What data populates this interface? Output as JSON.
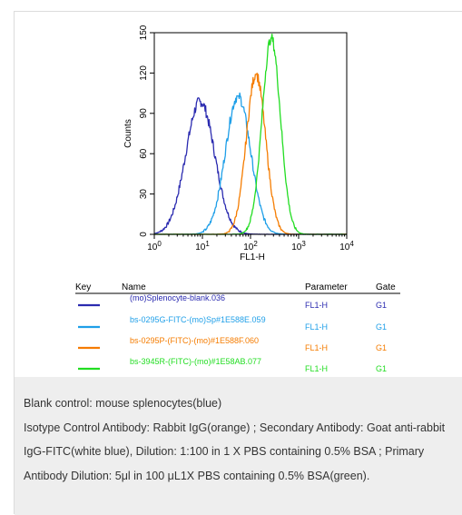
{
  "chart_data": {
    "type": "line",
    "xlabel": "FL1-H",
    "ylabel": "Counts",
    "x_scale": "log",
    "xlim": [
      1,
      10000
    ],
    "ylim": [
      0,
      150
    ],
    "x_ticks": [
      {
        "value": 1,
        "base": "10",
        "exp": "0"
      },
      {
        "value": 10,
        "base": "10",
        "exp": "1"
      },
      {
        "value": 100,
        "base": "10",
        "exp": "2"
      },
      {
        "value": 1000,
        "base": "10",
        "exp": "3"
      },
      {
        "value": 10000,
        "base": "10",
        "exp": "4"
      }
    ],
    "y_ticks": [
      0,
      30,
      60,
      90,
      120,
      150
    ],
    "grid": false,
    "series": [
      {
        "name": "(mo)Splenocyte-blank.036",
        "color": "#2b2bb0",
        "peak_x": 9,
        "peak_y": 99,
        "width": 0.3
      },
      {
        "name": "bs-0295G-FITC-(mo)Sp#1E588E.059",
        "color": "#1f9fe8",
        "peak_x": 55,
        "peak_y": 103,
        "width": 0.26
      },
      {
        "name": "bs-0295P-(FITC)-(mo)#1E588F.060",
        "color": "#f57c00",
        "peak_x": 130,
        "peak_y": 119,
        "width": 0.2
      },
      {
        "name": "bs-3945R-(FITC)-(mo)#1E58AB.077",
        "color": "#22dd22",
        "peak_x": 270,
        "peak_y": 146,
        "width": 0.19
      }
    ],
    "key_table": {
      "headers": {
        "key": "Key",
        "name": "Name",
        "parameter": "Parameter",
        "gate": "Gate"
      },
      "rows": [
        {
          "name": "(mo)Splenocyte-blank.036",
          "parameter": "FL1-H",
          "gate": "G1"
        },
        {
          "name": "bs-0295G-FITC-(mo)Sp#1E588E.059",
          "parameter": "FL1-H",
          "gate": "G1"
        },
        {
          "name": "bs-0295P-(FITC)-(mo)#1E588F.060",
          "parameter": "FL1-H",
          "gate": "G1"
        },
        {
          "name": "bs-3945R-(FITC)-(mo)#1E58AB.077",
          "parameter": "FL1-H",
          "gate": "G1"
        }
      ]
    }
  },
  "caption": {
    "line1": "Blank control: mouse splenocytes(blue)",
    "line2": "Isotype Control Antibody: Rabbit IgG(orange) ; Secondary Antibody: Goat anti-rabbit IgG-FITC(white blue), Dilution: 1:100 in 1 X PBS containing 0.5% BSA ; Primary Antibody Dilution: 5μl in 100 μL1X PBS containing 0.5% BSA(green)."
  }
}
